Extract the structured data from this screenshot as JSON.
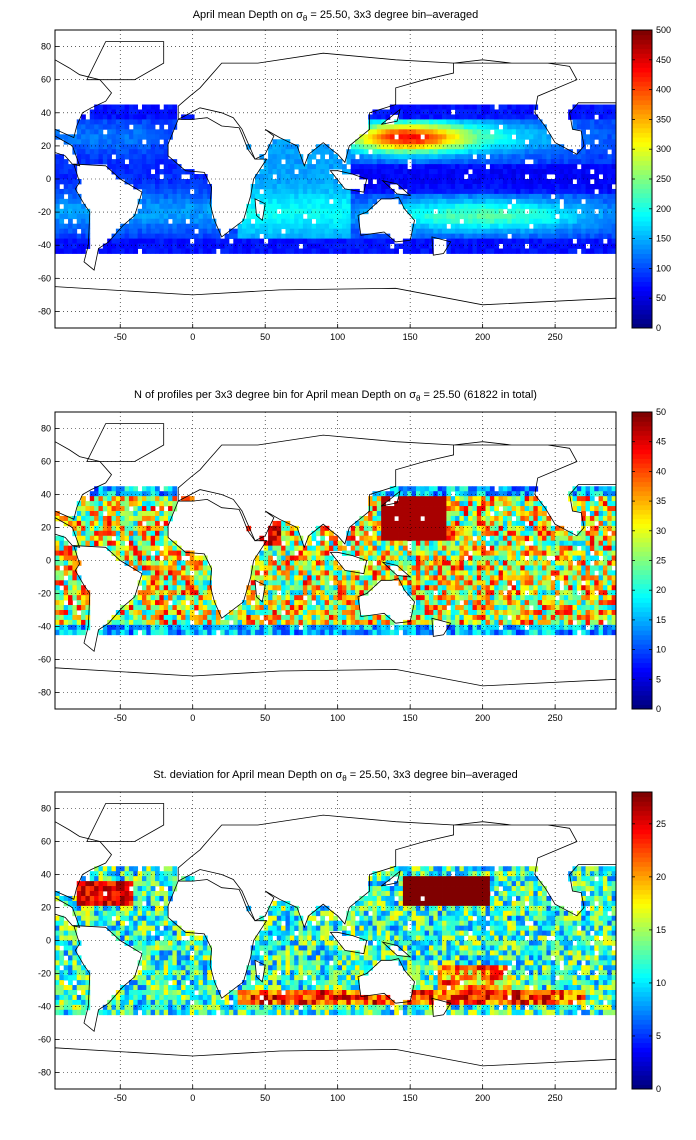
{
  "chart_data": [
    {
      "type": "heatmap",
      "title_prefix": "April mean Depth on ",
      "title_symbol": "σ",
      "title_subscript": "θ",
      "title_suffix": " = 25.50, 3x3 degree bin–averaged",
      "xticks": [
        "-50",
        "0",
        "50",
        "100",
        "150",
        "200",
        "250"
      ],
      "yticks": [
        "80",
        "60",
        "40",
        "20",
        "0",
        "-20",
        "-40",
        "-60",
        "-80"
      ],
      "xlim": [
        -95,
        292
      ],
      "ylim": [
        -90,
        90
      ],
      "grid": true,
      "colormap": "jet",
      "colorbar": {
        "min": 0,
        "max": 500,
        "ticks": [
          "500",
          "450",
          "400",
          "350",
          "300",
          "250",
          "200",
          "150",
          "100",
          "50",
          "0"
        ]
      },
      "field": "depth"
    },
    {
      "type": "heatmap",
      "title_prefix": "N of profiles per 3x3 degree bin for April mean Depth on ",
      "title_symbol": "σ",
      "title_subscript": "θ",
      "title_suffix": " = 25.50 (61822 in total)",
      "xticks": [
        "-50",
        "0",
        "50",
        "100",
        "150",
        "200",
        "250"
      ],
      "yticks": [
        "80",
        "60",
        "40",
        "20",
        "0",
        "-20",
        "-40",
        "-60",
        "-80"
      ],
      "xlim": [
        -95,
        292
      ],
      "ylim": [
        -90,
        90
      ],
      "grid": true,
      "colormap": "jet",
      "colorbar": {
        "min": 0,
        "max": 50,
        "ticks": [
          "50",
          "45",
          "40",
          "35",
          "30",
          "25",
          "20",
          "15",
          "10",
          "5",
          "0"
        ]
      },
      "field": "count"
    },
    {
      "type": "heatmap",
      "title_prefix": "St. deviation for April mean Depth on ",
      "title_symbol": "σ",
      "title_subscript": "θ",
      "title_suffix": " = 25.50, 3x3 degree bin–averaged",
      "xticks": [
        "-50",
        "0",
        "50",
        "100",
        "150",
        "200",
        "250"
      ],
      "yticks": [
        "80",
        "60",
        "40",
        "20",
        "0",
        "-20",
        "-40",
        "-60",
        "-80"
      ],
      "xlim": [
        -95,
        292
      ],
      "ylim": [
        -90,
        90
      ],
      "grid": true,
      "colormap": "jet",
      "colorbar": {
        "min": 0,
        "max": 28,
        "ticks": [
          "25",
          "20",
          "15",
          "10",
          "5",
          "0"
        ]
      },
      "field": "std"
    }
  ]
}
